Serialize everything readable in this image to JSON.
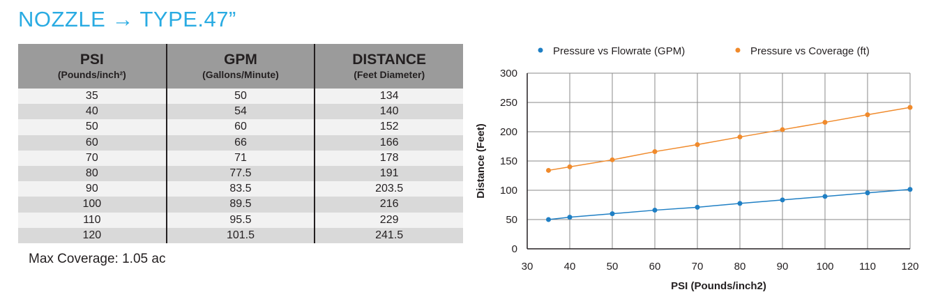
{
  "title": "NOZZLE → TYPE.47”",
  "table": {
    "headers": [
      {
        "main": "PSI",
        "sub": "(Pounds/inch²)"
      },
      {
        "main": "GPM",
        "sub": "(Gallons/Minute)"
      },
      {
        "main": "DISTANCE",
        "sub": "(Feet Diameter)"
      }
    ],
    "rows": [
      [
        "35",
        "50",
        "134"
      ],
      [
        "40",
        "54",
        "140"
      ],
      [
        "50",
        "60",
        "152"
      ],
      [
        "60",
        "66",
        "166"
      ],
      [
        "70",
        "71",
        "178"
      ],
      [
        "80",
        "77.5",
        "191"
      ],
      [
        "90",
        "83.5",
        "203.5"
      ],
      [
        "100",
        "89.5",
        "216"
      ],
      [
        "110",
        "95.5",
        "229"
      ],
      [
        "120",
        "101.5",
        "241.5"
      ]
    ],
    "note": "Max Coverage: 1.05 ac"
  },
  "chart_data": {
    "type": "line",
    "title": "",
    "xlabel": "PSI (Pounds/inch2)",
    "ylabel": "Distance (Feet)",
    "x": [
      35,
      40,
      50,
      60,
      70,
      80,
      90,
      100,
      110,
      120
    ],
    "xlim": [
      30,
      120
    ],
    "ylim": [
      0,
      300
    ],
    "xticks": [
      30,
      40,
      50,
      60,
      70,
      80,
      90,
      100,
      110,
      120
    ],
    "yticks": [
      0,
      50,
      100,
      150,
      200,
      250,
      300
    ],
    "grid": true,
    "legend_position": "top",
    "series": [
      {
        "name": "Pressure vs Flowrate (GPM)",
        "color": "#1f7fc4",
        "values": [
          50,
          54,
          60,
          66,
          71,
          77.5,
          83.5,
          89.5,
          95.5,
          101.5
        ]
      },
      {
        "name": "Pressure vs Coverage (ft)",
        "color": "#f08a2b",
        "values": [
          134,
          140,
          152,
          166,
          178,
          191,
          203.5,
          216,
          229,
          241.5
        ]
      }
    ]
  }
}
